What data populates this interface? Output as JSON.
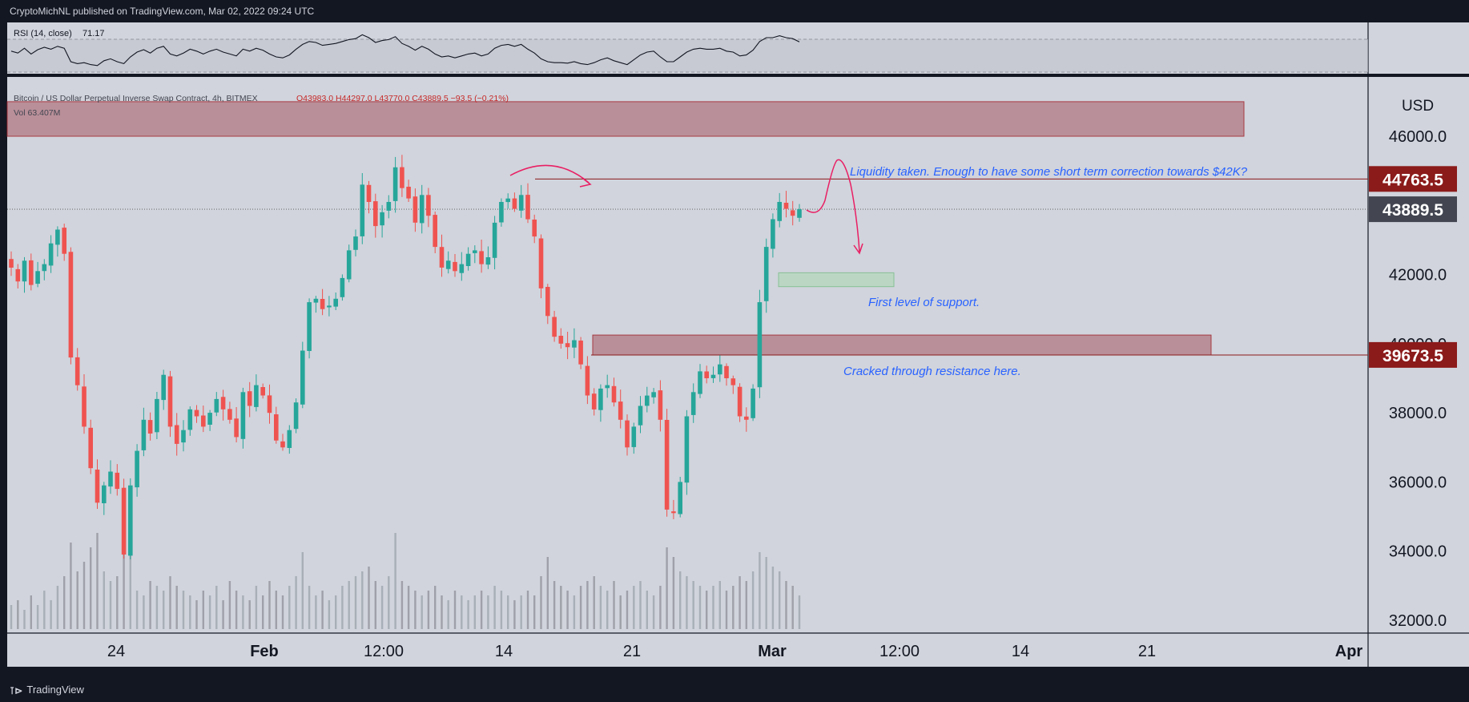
{
  "header": {
    "published_text": "CryptoMichNL published on TradingView.com, Mar 02, 2022 09:24 UTC"
  },
  "footer": {
    "brand_label": "TradingView",
    "brand_icon": "tradingview-logo-icon"
  },
  "colors": {
    "background": "#131722",
    "pane": "#d1d4dc",
    "up": "#26a69a",
    "down": "#ef5350",
    "label_red": "#8b1a1a",
    "label_dark": "#434651",
    "zone_red": "#b5838e",
    "zone_green": "#b9d8c2",
    "annotation_blue": "#2962ff",
    "annotation_pink": "#e91e63"
  },
  "rsi": {
    "label": "RSI (14, close)",
    "value": "71.17"
  },
  "legend": {
    "symbol": "Bitcoin / US Dollar Perpetual Inverse Swap Contract, 4h, BITMEX",
    "ohlc": "O43983.0  H44297.0  L43770.0  C43889.5  −93.5 (−0.21%)",
    "vol": "Vol  63.407M"
  },
  "price_axis": {
    "currency": "USD",
    "labels": [
      "46000.0",
      "42000.0",
      "40000.0",
      "38000.0",
      "36000.0",
      "34000.0",
      "32000.0"
    ],
    "tags": [
      {
        "text": "44763.5",
        "price": 44763.5,
        "style": "red"
      },
      {
        "text": "43889.5",
        "price": 43889.5,
        "style": "dark"
      },
      {
        "text": "39673.5",
        "price": 39673.5,
        "style": "red"
      }
    ]
  },
  "annotations": {
    "liquidity": "Liquidity taken. Enough to have some short term correction towards $42K?",
    "support": "First level of support.",
    "resistance": "Cracked through resistance here."
  },
  "chart_data": {
    "type": "candlestick",
    "title": "Bitcoin / US Dollar Perpetual Inverse Swap Contract, 4h, BITMEX",
    "ylabel": "USD",
    "ylim": [
      31500,
      47300
    ],
    "x_ticks": [
      "24",
      "Feb",
      "12:00",
      "14",
      "21",
      "Mar",
      "12:00",
      "14",
      "21",
      "Apr"
    ],
    "levels": [
      44763.5,
      43889.5,
      39673.5
    ],
    "zones": [
      {
        "name": "resistance-upper",
        "from": 46000,
        "to": 47000
      },
      {
        "name": "resistance-lower",
        "from": 39673.5,
        "to": 40250
      },
      {
        "name": "support",
        "from": 41650,
        "to": 42050
      }
    ],
    "close_path": [
      42200,
      41800,
      42400,
      41700,
      42100,
      42300,
      42900,
      43300,
      42600,
      39600,
      38800,
      37600,
      36400,
      35400,
      35900,
      36300,
      35800,
      33900,
      35900,
      36900,
      37800,
      37400,
      38400,
      39100,
      37600,
      37100,
      37500,
      38100,
      37900,
      37600,
      38000,
      38400,
      38100,
      37800,
      37300,
      38600,
      38200,
      38800,
      38500,
      38000,
      37200,
      37000,
      37500,
      38300,
      39800,
      41200,
      41300,
      41000,
      41100,
      41300,
      41900,
      42700,
      43100,
      44600,
      44100,
      43400,
      43800,
      44100,
      45100,
      44500,
      44200,
      43500,
      44300,
      43700,
      42800,
      42200,
      42400,
      42100,
      42300,
      42600,
      42700,
      42300,
      42500,
      43500,
      44100,
      44200,
      43900,
      44300,
      43600,
      43100,
      41600,
      40800,
      40200,
      40000,
      39900,
      40100,
      39400,
      38500,
      38100,
      38700,
      38800,
      38300,
      37800,
      37000,
      37600,
      38200,
      38500,
      38600,
      37800,
      35200,
      35100,
      36000,
      37900,
      38600,
      39200,
      39000,
      39100,
      39400,
      39000,
      38800,
      37900,
      37800,
      38700,
      41200,
      42800,
      43600,
      44100,
      43900,
      43700,
      43889.5
    ],
    "volume_path": [
      0.25,
      0.3,
      0.2,
      0.35,
      0.25,
      0.4,
      0.3,
      0.45,
      0.55,
      0.9,
      0.6,
      0.7,
      0.85,
      1.0,
      0.6,
      0.5,
      0.55,
      0.85,
      0.95,
      0.4,
      0.35,
      0.5,
      0.45,
      0.4,
      0.55,
      0.45,
      0.4,
      0.35,
      0.3,
      0.4,
      0.35,
      0.45,
      0.3,
      0.5,
      0.4,
      0.35,
      0.3,
      0.45,
      0.35,
      0.5,
      0.4,
      0.35,
      0.45,
      0.55,
      0.8,
      0.45,
      0.35,
      0.4,
      0.3,
      0.35,
      0.45,
      0.5,
      0.55,
      0.6,
      0.65,
      0.5,
      0.45,
      0.55,
      1.0,
      0.5,
      0.45,
      0.4,
      0.35,
      0.4,
      0.45,
      0.35,
      0.3,
      0.4,
      0.35,
      0.3,
      0.35,
      0.4,
      0.35,
      0.45,
      0.4,
      0.35,
      0.3,
      0.35,
      0.4,
      0.35,
      0.55,
      0.75,
      0.5,
      0.45,
      0.4,
      0.35,
      0.45,
      0.5,
      0.55,
      0.45,
      0.4,
      0.5,
      0.35,
      0.4,
      0.45,
      0.5,
      0.4,
      0.35,
      0.45,
      0.85,
      0.75,
      0.6,
      0.55,
      0.5,
      0.45,
      0.4,
      0.45,
      0.5,
      0.4,
      0.45,
      0.55,
      0.5,
      0.6,
      0.8,
      0.75,
      0.65,
      0.6,
      0.5,
      0.45,
      0.35
    ],
    "rsi_path": [
      52,
      48,
      58,
      46,
      55,
      60,
      56,
      62,
      58,
      30,
      26,
      28,
      24,
      22,
      32,
      36,
      30,
      26,
      40,
      50,
      55,
      48,
      58,
      62,
      46,
      42,
      48,
      56,
      52,
      46,
      52,
      56,
      50,
      46,
      42,
      56,
      52,
      58,
      54,
      46,
      40,
      38,
      44,
      56,
      66,
      72,
      70,
      64,
      66,
      68,
      72,
      76,
      78,
      86,
      80,
      70,
      74,
      76,
      82,
      68,
      62,
      54,
      62,
      56,
      46,
      40,
      42,
      38,
      42,
      46,
      48,
      42,
      46,
      58,
      64,
      66,
      62,
      66,
      56,
      48,
      36,
      30,
      28,
      28,
      27,
      30,
      26,
      24,
      28,
      34,
      38,
      32,
      28,
      24,
      34,
      44,
      50,
      52,
      40,
      30,
      30,
      40,
      50,
      56,
      58,
      56,
      56,
      58,
      52,
      50,
      42,
      44,
      54,
      72,
      80,
      80,
      84,
      80,
      78,
      71.17
    ]
  }
}
